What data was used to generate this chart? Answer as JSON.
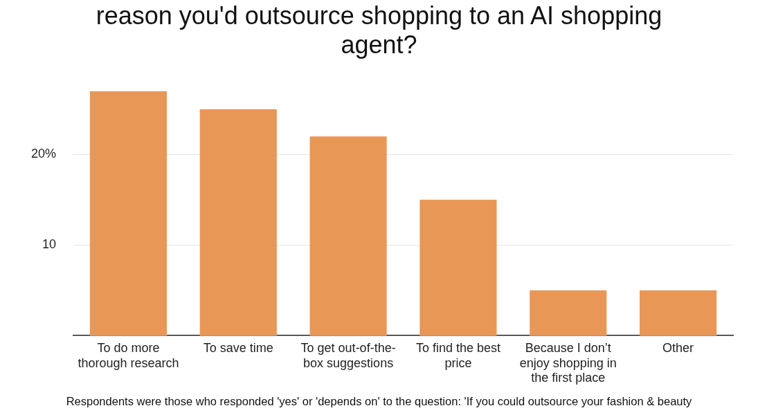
{
  "chart_data": {
    "type": "bar",
    "title": "reason you'd outsource shopping to an AI shopping agent?",
    "categories": [
      "To do more thorough research",
      "To save time",
      "To get out-of-the-box suggestions",
      "To find the best price",
      "Because I don’t enjoy shopping in the first place",
      "Other"
    ],
    "values": [
      27,
      25,
      22,
      15,
      5,
      5
    ],
    "color": "#e99757",
    "ylim": [
      0,
      27
    ],
    "yticks": [
      10,
      {
        "value": 20,
        "label": "20%"
      }
    ],
    "grid": "y",
    "annotations": [
      "Respondents were those who responded 'yes' or 'depends on' to the question: 'If you could outsource your fashion & beauty"
    ]
  }
}
